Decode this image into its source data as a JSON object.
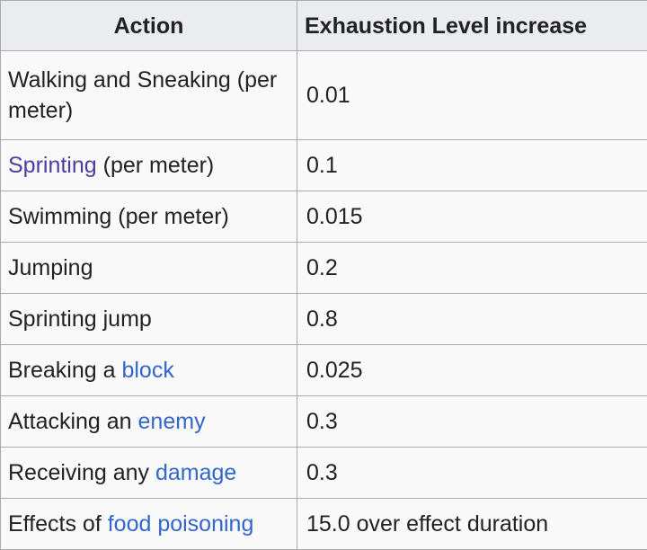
{
  "headers": {
    "action": "Action",
    "exhaustion": "Exhaustion Level increase"
  },
  "rows": [
    {
      "pre": "Walking and Sneaking (per meter)",
      "link": "",
      "post": "",
      "value": "0.01"
    },
    {
      "pre": "",
      "link": "Sprinting",
      "post": " (per meter)",
      "value": "0.1"
    },
    {
      "pre": "Swimming (per meter)",
      "link": "",
      "post": "",
      "value": "0.015"
    },
    {
      "pre": "Jumping",
      "link": "",
      "post": "",
      "value": "0.2"
    },
    {
      "pre": "Sprinting jump",
      "link": "",
      "post": "",
      "value": "0.8"
    },
    {
      "pre": "Breaking a ",
      "link": "block",
      "post": "",
      "value": "0.025"
    },
    {
      "pre": "Attacking an ",
      "link": "enemy",
      "post": "",
      "value": "0.3"
    },
    {
      "pre": "Receiving any ",
      "link": "damage",
      "post": "",
      "value": "0.3"
    },
    {
      "pre": "Effects of ",
      "link": "food poisoning",
      "post": "",
      "value": "15.0 over effect duration"
    }
  ],
  "colors": {
    "link": "#3366cc",
    "visited_link": "#4c3e9f",
    "header_bg": "#eaecf0",
    "cell_bg": "#f9f9f9",
    "border": "#aaaaaa"
  }
}
